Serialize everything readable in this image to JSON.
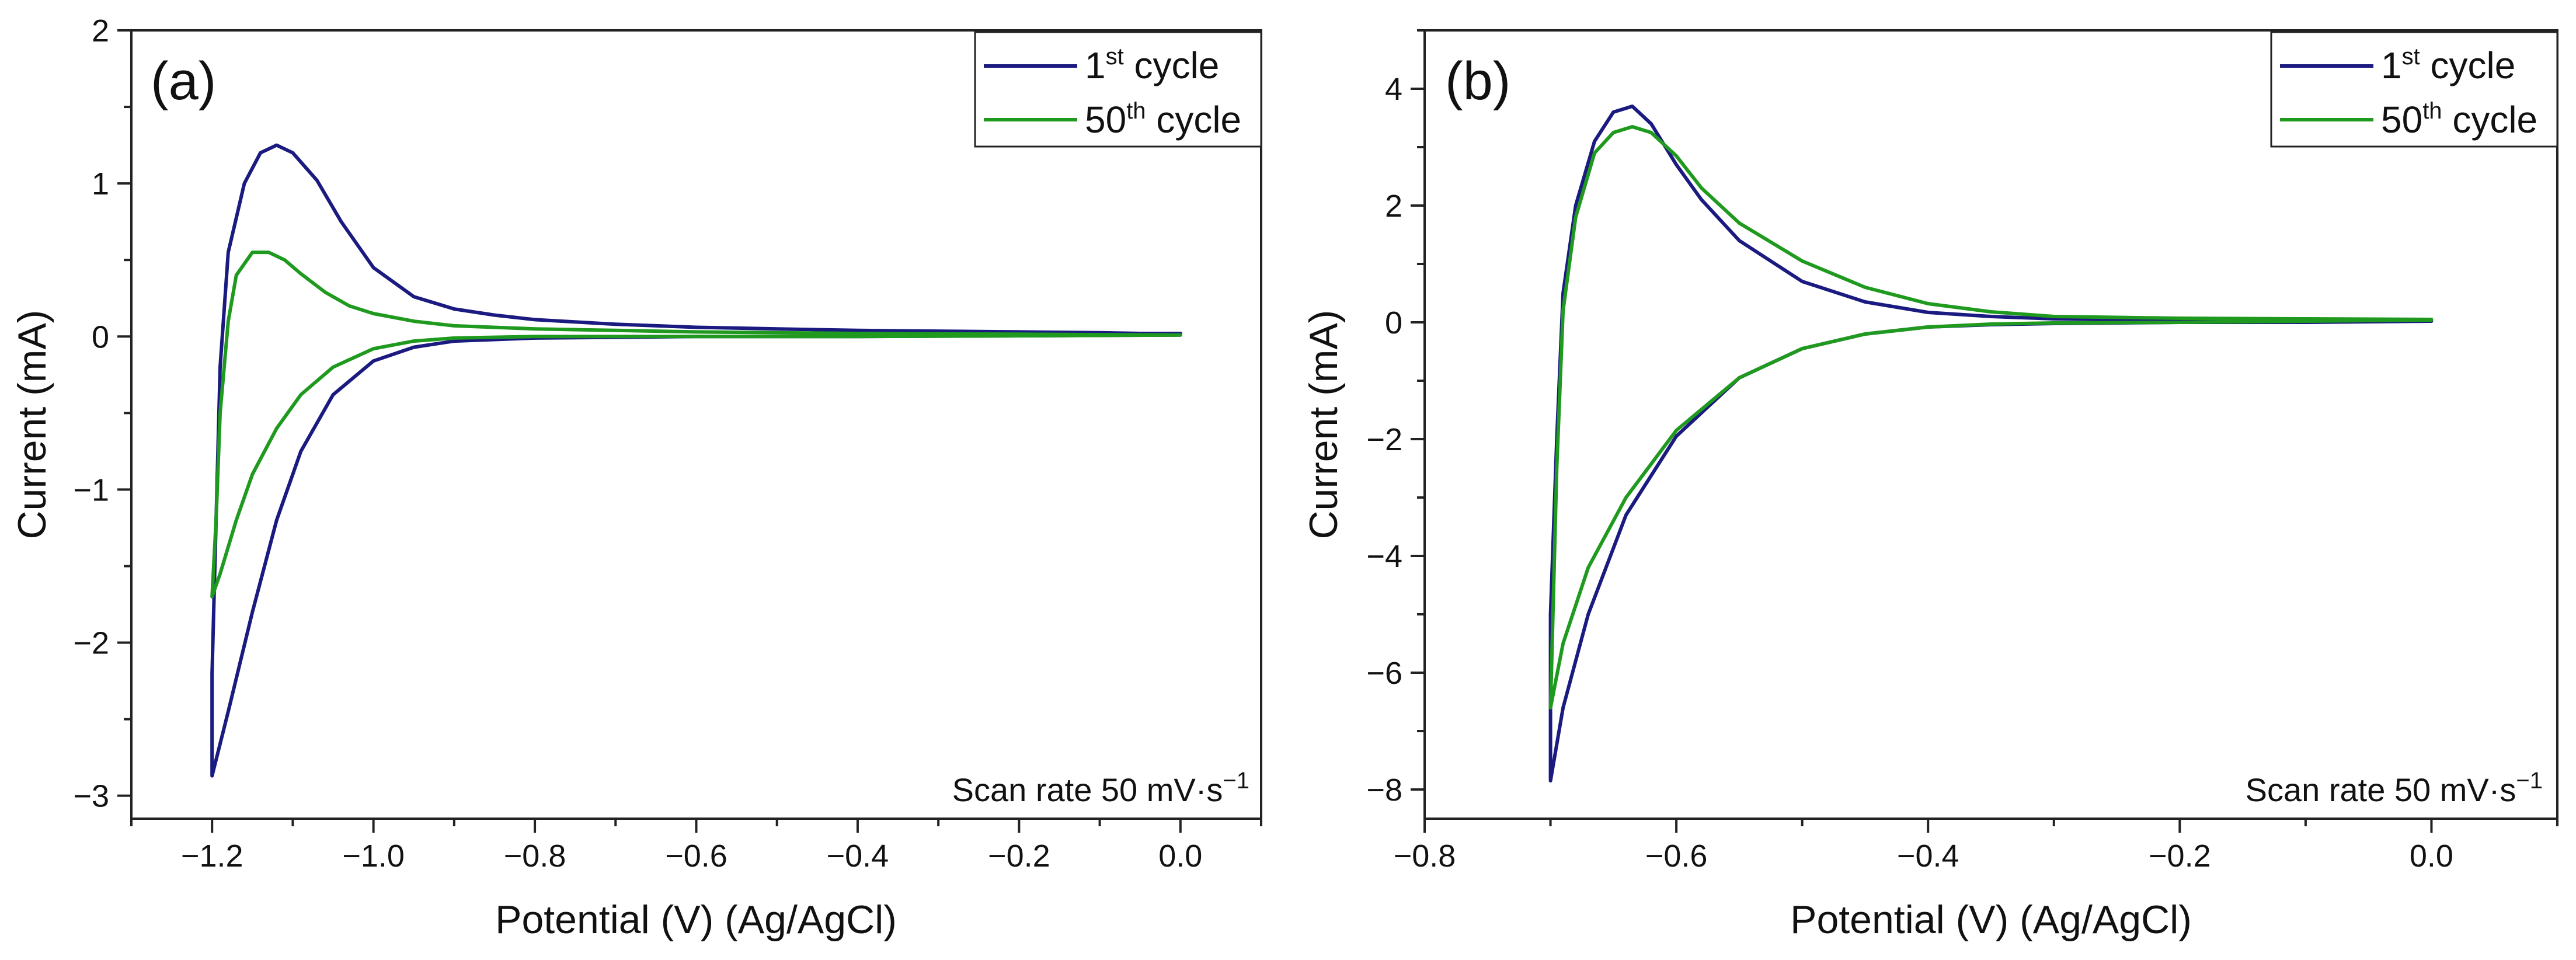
{
  "chart_data": [
    {
      "type": "line",
      "panel_label": "(a)",
      "xlabel": "Potential (V) (Ag/AgCl)",
      "ylabel": "Current (mA)",
      "xlim": [
        -1.3,
        0.1
      ],
      "ylim": [
        -3.15,
        2.0
      ],
      "xticks": [
        -1.2,
        -1.0,
        -0.8,
        -0.6,
        -0.4,
        -0.2,
        0.0
      ],
      "xtick_labels": [
        "−1.2",
        "−1.0",
        "−0.8",
        "−0.6",
        "−0.4",
        "−0.2",
        "0.0"
      ],
      "yticks": [
        2,
        1,
        0,
        -1,
        -2,
        -3
      ],
      "ytick_labels": [
        "2",
        "1",
        "0",
        "−1",
        "−2",
        "−3"
      ],
      "legend": [
        {
          "base": "1",
          "sup": "st",
          "rest": " cycle"
        },
        {
          "base": "50",
          "sup": "th",
          "rest": " cycle"
        }
      ],
      "annotation": {
        "text": "Scan rate 50 mV·s",
        "sup": "−1"
      },
      "series": [
        {
          "name": "1st cycle",
          "color": "#1a1a80",
          "points": [
            [
              0.0,
              0.02
            ],
            [
              -0.05,
              0.02
            ],
            [
              -0.1,
              0.025
            ],
            [
              -0.2,
              0.03
            ],
            [
              -0.3,
              0.035
            ],
            [
              -0.4,
              0.04
            ],
            [
              -0.5,
              0.05
            ],
            [
              -0.6,
              0.06
            ],
            [
              -0.7,
              0.08
            ],
            [
              -0.8,
              0.11
            ],
            [
              -0.85,
              0.14
            ],
            [
              -0.9,
              0.18
            ],
            [
              -0.95,
              0.26
            ],
            [
              -1.0,
              0.45
            ],
            [
              -1.04,
              0.75
            ],
            [
              -1.07,
              1.02
            ],
            [
              -1.1,
              1.2
            ],
            [
              -1.12,
              1.25
            ],
            [
              -1.14,
              1.2
            ],
            [
              -1.16,
              1.0
            ],
            [
              -1.18,
              0.55
            ],
            [
              -1.19,
              -0.2
            ],
            [
              -1.195,
              -1.2
            ],
            [
              -1.2,
              -2.2
            ],
            [
              -1.2,
              -2.87
            ],
            [
              -1.18,
              -2.45
            ],
            [
              -1.15,
              -1.8
            ],
            [
              -1.12,
              -1.2
            ],
            [
              -1.09,
              -0.75
            ],
            [
              -1.05,
              -0.38
            ],
            [
              -1.0,
              -0.16
            ],
            [
              -0.95,
              -0.07
            ],
            [
              -0.9,
              -0.03
            ],
            [
              -0.8,
              -0.01
            ],
            [
              -0.6,
              0.0
            ],
            [
              -0.4,
              0.0
            ],
            [
              -0.2,
              0.005
            ],
            [
              0.0,
              0.01
            ]
          ]
        },
        {
          "name": "50th cycle",
          "color": "#1f9a1f",
          "points": [
            [
              0.0,
              0.01
            ],
            [
              -0.1,
              0.012
            ],
            [
              -0.2,
              0.015
            ],
            [
              -0.3,
              0.017
            ],
            [
              -0.4,
              0.02
            ],
            [
              -0.5,
              0.025
            ],
            [
              -0.6,
              0.03
            ],
            [
              -0.7,
              0.04
            ],
            [
              -0.8,
              0.05
            ],
            [
              -0.9,
              0.07
            ],
            [
              -0.95,
              0.1
            ],
            [
              -1.0,
              0.15
            ],
            [
              -1.03,
              0.2
            ],
            [
              -1.06,
              0.29
            ],
            [
              -1.09,
              0.41
            ],
            [
              -1.11,
              0.5
            ],
            [
              -1.13,
              0.55
            ],
            [
              -1.15,
              0.55
            ],
            [
              -1.17,
              0.4
            ],
            [
              -1.18,
              0.1
            ],
            [
              -1.19,
              -0.5
            ],
            [
              -1.195,
              -1.2
            ],
            [
              -1.2,
              -1.7
            ],
            [
              -1.19,
              -1.55
            ],
            [
              -1.17,
              -1.2
            ],
            [
              -1.15,
              -0.9
            ],
            [
              -1.12,
              -0.6
            ],
            [
              -1.09,
              -0.38
            ],
            [
              -1.05,
              -0.2
            ],
            [
              -1.0,
              -0.08
            ],
            [
              -0.95,
              -0.03
            ],
            [
              -0.9,
              -0.01
            ],
            [
              -0.8,
              0.0
            ],
            [
              -0.6,
              0.0
            ],
            [
              -0.4,
              0.0
            ],
            [
              -0.2,
              0.005
            ],
            [
              0.0,
              0.01
            ]
          ]
        }
      ]
    },
    {
      "type": "line",
      "panel_label": "(b)",
      "xlabel": "Potential (V) (Ag/AgCl)",
      "ylabel": "Current (mA)",
      "xlim": [
        -0.8,
        0.1
      ],
      "ylim": [
        -8.5,
        5.0
      ],
      "xticks": [
        -0.8,
        -0.6,
        -0.4,
        -0.2,
        0.0
      ],
      "xtick_labels": [
        "−0.8",
        "−0.6",
        "−0.4",
        "−0.2",
        "0.0"
      ],
      "yticks": [
        4,
        2,
        0,
        -2,
        -4,
        -6,
        -8
      ],
      "ytick_labels": [
        "4",
        "2",
        "0",
        "−2",
        "−4",
        "−6",
        "−8"
      ],
      "legend": [
        {
          "base": "1",
          "sup": "st",
          "rest": " cycle"
        },
        {
          "base": "50",
          "sup": "th",
          "rest": " cycle"
        }
      ],
      "annotation": {
        "text": "Scan rate 50 mV·s",
        "sup": "−1"
      },
      "series": [
        {
          "name": "1st cycle",
          "color": "#1a1a80",
          "points": [
            [
              0.0,
              0.02
            ],
            [
              -0.1,
              0.02
            ],
            [
              -0.2,
              0.03
            ],
            [
              -0.3,
              0.06
            ],
            [
              -0.35,
              0.1
            ],
            [
              -0.4,
              0.17
            ],
            [
              -0.45,
              0.35
            ],
            [
              -0.5,
              0.7
            ],
            [
              -0.55,
              1.4
            ],
            [
              -0.58,
              2.1
            ],
            [
              -0.6,
              2.7
            ],
            [
              -0.62,
              3.4
            ],
            [
              -0.635,
              3.7
            ],
            [
              -0.65,
              3.6
            ],
            [
              -0.665,
              3.1
            ],
            [
              -0.68,
              2.0
            ],
            [
              -0.69,
              0.5
            ],
            [
              -0.695,
              -2.0
            ],
            [
              -0.7,
              -5.0
            ],
            [
              -0.7,
              -7.85
            ],
            [
              -0.69,
              -6.6
            ],
            [
              -0.67,
              -5.0
            ],
            [
              -0.64,
              -3.3
            ],
            [
              -0.6,
              -1.95
            ],
            [
              -0.55,
              -0.95
            ],
            [
              -0.5,
              -0.45
            ],
            [
              -0.45,
              -0.2
            ],
            [
              -0.4,
              -0.08
            ],
            [
              -0.35,
              -0.04
            ],
            [
              -0.3,
              -0.02
            ],
            [
              -0.2,
              0.0
            ],
            [
              -0.1,
              0.0
            ],
            [
              0.0,
              0.02
            ]
          ]
        },
        {
          "name": "50th cycle",
          "color": "#1f9a1f",
          "points": [
            [
              0.0,
              0.05
            ],
            [
              -0.1,
              0.06
            ],
            [
              -0.2,
              0.07
            ],
            [
              -0.3,
              0.1
            ],
            [
              -0.35,
              0.18
            ],
            [
              -0.4,
              0.32
            ],
            [
              -0.45,
              0.6
            ],
            [
              -0.5,
              1.05
            ],
            [
              -0.55,
              1.7
            ],
            [
              -0.58,
              2.3
            ],
            [
              -0.6,
              2.85
            ],
            [
              -0.62,
              3.25
            ],
            [
              -0.635,
              3.35
            ],
            [
              -0.65,
              3.25
            ],
            [
              -0.665,
              2.9
            ],
            [
              -0.68,
              1.8
            ],
            [
              -0.69,
              0.2
            ],
            [
              -0.695,
              -2.5
            ],
            [
              -0.7,
              -6.6
            ],
            [
              -0.69,
              -5.5
            ],
            [
              -0.67,
              -4.2
            ],
            [
              -0.64,
              -3.0
            ],
            [
              -0.6,
              -1.85
            ],
            [
              -0.55,
              -0.95
            ],
            [
              -0.5,
              -0.45
            ],
            [
              -0.45,
              -0.2
            ],
            [
              -0.4,
              -0.08
            ],
            [
              -0.35,
              -0.03
            ],
            [
              -0.3,
              -0.01
            ],
            [
              -0.2,
              0.0
            ],
            [
              -0.1,
              0.02
            ],
            [
              0.0,
              0.04
            ]
          ]
        }
      ]
    }
  ]
}
